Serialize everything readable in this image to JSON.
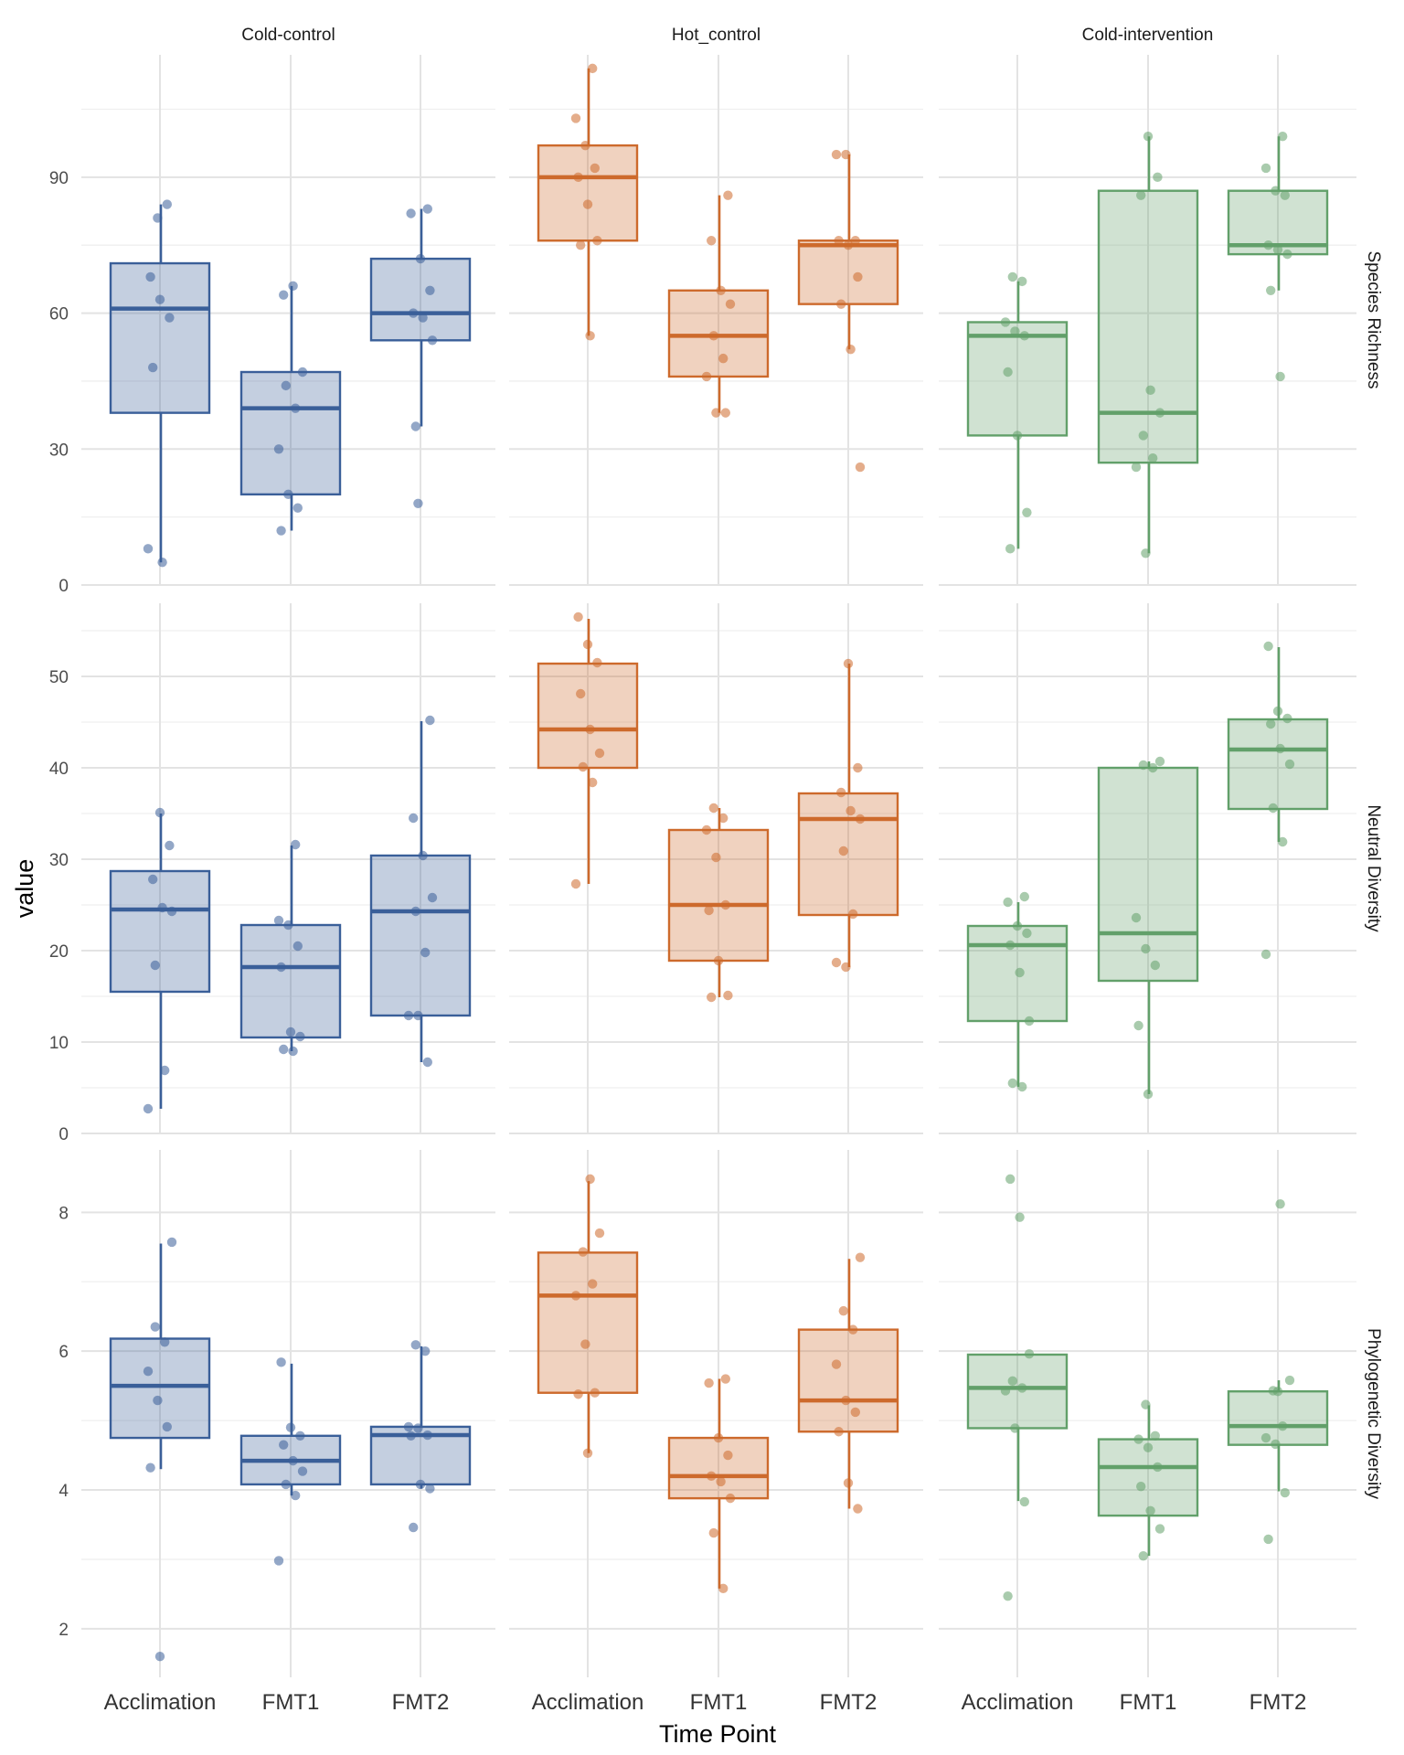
{
  "colors": {
    "Cold-control": "#3a5f99",
    "Hot_control": "#cd6a2c",
    "Cold-intervention": "#62a06a"
  },
  "chart_data": {
    "type": "box",
    "xlabel": "Time Point",
    "ylabel": "value",
    "categories": [
      "Acclimation",
      "FMT1",
      "FMT2"
    ],
    "columns": [
      "Cold-control",
      "Hot_control",
      "Cold-intervention"
    ],
    "rows": [
      {
        "label": "Species Richness",
        "ylim": [
          0,
          117
        ],
        "yticks": [
          0,
          30,
          60,
          90
        ],
        "minor_ticks": [
          15,
          45,
          75,
          105
        ],
        "groups": {
          "Cold-control": {
            "Acclimation": {
              "box": [
                5,
                38,
                61,
                71,
                84
              ],
              "points": [
                8,
                81,
                84,
                68,
                63,
                59,
                48,
                5
              ]
            },
            "FMT1": {
              "box": [
                12,
                20,
                39,
                47,
                66
              ],
              "points": [
                64,
                66,
                47,
                44,
                39,
                30,
                20,
                17,
                12
              ]
            },
            "FMT2": {
              "box": [
                35,
                54,
                60,
                72,
                83
              ],
              "points": [
                18,
                83,
                82,
                72,
                65,
                60,
                59,
                54,
                35
              ]
            }
          },
          "Hot_control": {
            "Acclimation": {
              "box": [
                55,
                76,
                90,
                97,
                114
              ],
              "points": [
                114,
                103,
                97,
                92,
                90,
                84,
                76,
                75,
                55
              ]
            },
            "FMT1": {
              "box": [
                38,
                46,
                55,
                65,
                86
              ],
              "points": [
                86,
                76,
                65,
                62,
                55,
                50,
                46,
                38,
                38
              ]
            },
            "FMT2": {
              "box": [
                52,
                62,
                75,
                76,
                95
              ],
              "points": [
                95,
                95,
                76,
                76,
                75,
                68,
                62,
                52,
                26
              ]
            }
          },
          "Cold-intervention": {
            "Acclimation": {
              "box": [
                8,
                33,
                55,
                58,
                67
              ],
              "points": [
                68,
                67,
                58,
                56,
                55,
                47,
                33,
                16,
                8
              ]
            },
            "FMT1": {
              "box": [
                7,
                27,
                38,
                87,
                99
              ],
              "points": [
                99,
                90,
                86,
                43,
                38,
                33,
                28,
                26,
                7
              ]
            },
            "FMT2": {
              "box": [
                65,
                73,
                75,
                87,
                99
              ],
              "points": [
                99,
                92,
                87,
                86,
                75,
                74,
                73,
                65,
                46
              ]
            }
          }
        }
      },
      {
        "label": "Neutral Diversity",
        "ylim": [
          0,
          58
        ],
        "yticks": [
          0,
          10,
          20,
          30,
          40,
          50
        ],
        "minor_ticks": [
          5,
          15,
          25,
          35,
          45,
          55
        ],
        "groups": {
          "Cold-control": {
            "Acclimation": {
              "box": [
                2.7,
                15.5,
                24.5,
                28.7,
                35.0
              ],
              "points": [
                35.1,
                31.5,
                27.8,
                24.7,
                24.3,
                18.4,
                6.9,
                2.7
              ]
            },
            "FMT1": {
              "box": [
                9.0,
                10.5,
                18.2,
                22.8,
                31.5
              ],
              "points": [
                31.6,
                23.3,
                22.8,
                20.5,
                18.2,
                11.1,
                10.6,
                9.2,
                9.0
              ]
            },
            "FMT2": {
              "box": [
                7.8,
                12.9,
                24.3,
                30.4,
                45.1
              ],
              "points": [
                45.2,
                34.5,
                30.4,
                25.8,
                24.3,
                19.8,
                12.9,
                12.9,
                7.8
              ]
            }
          },
          "Hot_control": {
            "Acclimation": {
              "box": [
                27.3,
                40.0,
                44.2,
                51.4,
                56.3
              ],
              "points": [
                56.5,
                53.5,
                51.5,
                48.1,
                44.2,
                41.6,
                40.1,
                38.4,
                27.3
              ]
            },
            "FMT1": {
              "box": [
                14.9,
                18.9,
                25.0,
                33.2,
                35.6
              ],
              "points": [
                35.6,
                34.5,
                33.2,
                30.2,
                25.0,
                24.4,
                18.9,
                15.1,
                14.9
              ]
            },
            "FMT2": {
              "box": [
                18.2,
                23.9,
                34.4,
                37.2,
                51.4
              ],
              "points": [
                51.4,
                40.0,
                37.3,
                35.3,
                34.4,
                30.9,
                24.0,
                18.7,
                18.2
              ]
            }
          },
          "Cold-intervention": {
            "Acclimation": {
              "box": [
                5.1,
                12.3,
                20.6,
                22.7,
                25.3
              ],
              "points": [
                25.9,
                25.3,
                22.7,
                21.9,
                20.6,
                17.6,
                12.3,
                5.5,
                5.1
              ]
            },
            "FMT1": {
              "box": [
                4.3,
                16.7,
                21.9,
                40.0,
                40.7
              ],
              "points": [
                40.7,
                40.3,
                40.0,
                23.6,
                20.2,
                18.4,
                11.8,
                4.3
              ]
            },
            "FMT2": {
              "box": [
                31.9,
                35.5,
                42.0,
                45.3,
                53.2
              ],
              "points": [
                53.3,
                46.2,
                45.4,
                44.8,
                42.1,
                40.4,
                35.6,
                31.9,
                19.6
              ]
            }
          }
        }
      },
      {
        "label": "Phylogenetic Diversity",
        "ylim": [
          1.3,
          8.9
        ],
        "yticks": [
          2,
          4,
          6,
          8
        ],
        "minor_ticks": [
          3,
          5,
          7
        ],
        "groups": {
          "Cold-control": {
            "Acclimation": {
              "box": [
                4.3,
                4.75,
                5.5,
                6.18,
                7.55
              ],
              "points": [
                7.57,
                6.35,
                6.13,
                5.71,
                5.29,
                4.91,
                4.32,
                1.6
              ]
            },
            "FMT1": {
              "box": [
                3.92,
                4.08,
                4.42,
                4.78,
                5.82
              ],
              "points": [
                5.84,
                4.9,
                4.78,
                4.65,
                4.42,
                4.27,
                4.08,
                3.92,
                2.98
              ]
            },
            "FMT2": {
              "box": [
                4.02,
                4.08,
                4.79,
                4.91,
                6.07
              ],
              "points": [
                6.09,
                6.0,
                4.91,
                4.89,
                4.79,
                4.78,
                4.08,
                4.02,
                3.46
              ]
            }
          },
          "Hot_control": {
            "Acclimation": {
              "box": [
                4.53,
                5.4,
                6.8,
                7.42,
                8.45
              ],
              "points": [
                8.48,
                7.7,
                7.43,
                6.97,
                6.8,
                6.1,
                5.4,
                5.38,
                4.53
              ]
            },
            "FMT1": {
              "box": [
                2.58,
                3.88,
                4.2,
                4.75,
                5.6
              ],
              "points": [
                5.6,
                5.54,
                4.75,
                4.5,
                4.2,
                4.12,
                3.88,
                3.38,
                2.58
              ]
            },
            "FMT2": {
              "box": [
                3.73,
                4.84,
                5.29,
                6.31,
                7.33
              ],
              "points": [
                7.35,
                6.58,
                6.31,
                5.81,
                5.29,
                5.12,
                4.84,
                4.1,
                3.73
              ]
            }
          },
          "Cold-intervention": {
            "Acclimation": {
              "box": [
                3.84,
                4.89,
                5.47,
                5.95,
                5.95
              ],
              "points": [
                8.48,
                7.93,
                5.96,
                5.57,
                5.47,
                5.43,
                4.89,
                3.83,
                2.47
              ]
            },
            "FMT1": {
              "box": [
                3.05,
                3.63,
                4.33,
                4.73,
                5.22
              ],
              "points": [
                5.23,
                4.78,
                4.73,
                4.61,
                4.33,
                4.05,
                3.7,
                3.44,
                3.05
              ]
            },
            "FMT2": {
              "box": [
                3.98,
                4.65,
                4.92,
                5.42,
                5.58
              ],
              "points": [
                8.12,
                5.58,
                5.43,
                4.92,
                4.75,
                4.66,
                3.96,
                3.29,
                5.42
              ]
            }
          }
        }
      }
    ]
  }
}
